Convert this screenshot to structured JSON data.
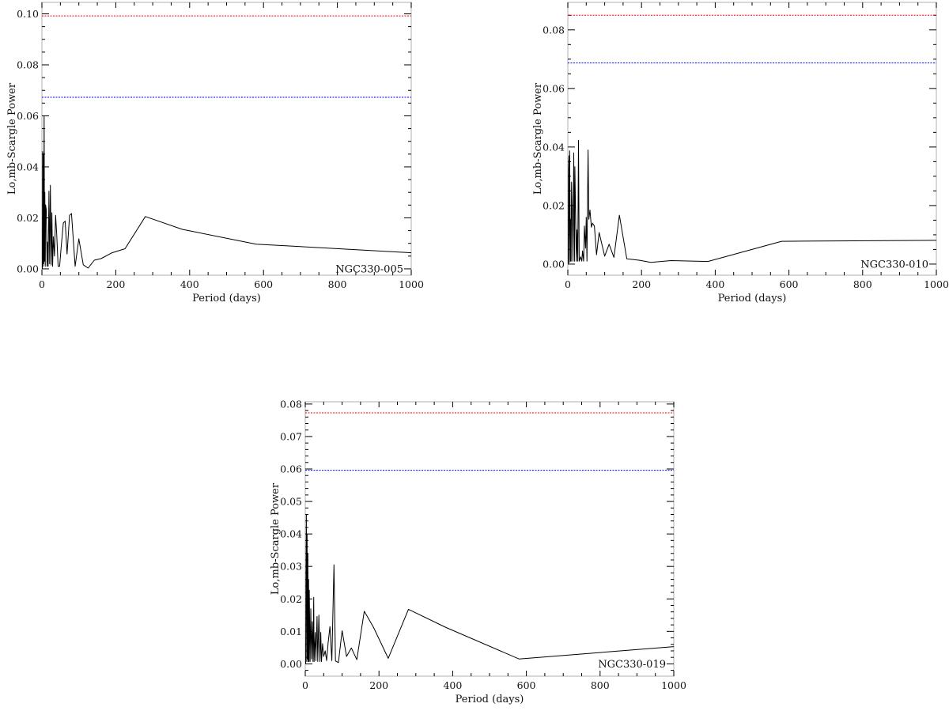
{
  "colors": {
    "significance_high": "#ff0000",
    "significance_low": "#0000ff",
    "series": "#000000"
  },
  "chart_data": [
    {
      "type": "line",
      "label": "NGC330-005",
      "xlabel": "Period (days)",
      "ylabel": "Lo,mb-Scargle Power",
      "xlim": [
        0,
        1000
      ],
      "ylim": [
        -0.0025,
        0.1045
      ],
      "xticks": [
        0,
        200,
        400,
        600,
        800,
        1000
      ],
      "xtick_labels": [
        "0",
        "200",
        "400",
        "600",
        "800",
        "1000"
      ],
      "xminor_step": 50,
      "yticks": [
        0,
        0.02,
        0.04,
        0.06,
        0.08,
        0.1
      ],
      "ytick_labels": [
        "0.00",
        "0.02",
        "0.04",
        "0.06",
        "0.08",
        "0.10"
      ],
      "yminor_step": 0.005,
      "grid": false,
      "thresholds": [
        {
          "y": 0.0992,
          "color": "#ff0000",
          "style": "dotted"
        },
        {
          "y": 0.0673,
          "color": "#0000ff",
          "style": "dotted"
        }
      ],
      "x": [
        1,
        2,
        3,
        4,
        5,
        6,
        7,
        8,
        9,
        10,
        12,
        14,
        15,
        17,
        19,
        21,
        23,
        25,
        27,
        29,
        31,
        34,
        37,
        40,
        44,
        48,
        52,
        58,
        63,
        68,
        75,
        80,
        90,
        100,
        112,
        125,
        142,
        160,
        190,
        225,
        280,
        380,
        580,
        1000
      ],
      "y": [
        0.0,
        0.046,
        0.001,
        0.045,
        0.002,
        0.06,
        0.003,
        0.03,
        0.001,
        0.025,
        0.023,
        0.001,
        0.0105,
        0.001,
        0.0305,
        0.002,
        0.0328,
        0.0015,
        0.022,
        0.001,
        0.0126,
        0.005,
        0.021,
        0.0137,
        0.001,
        0.001,
        0.0084,
        0.018,
        0.0187,
        0.0058,
        0.021,
        0.0217,
        0.001,
        0.0118,
        0.0016,
        0.0003,
        0.0034,
        0.004,
        0.0063,
        0.0079,
        0.0205,
        0.0155,
        0.0097,
        0.0063
      ]
    },
    {
      "type": "line",
      "label": "NGC330-010",
      "xlabel": "Period (days)",
      "ylabel": "Lo,mb-Scargle Power",
      "xlim": [
        0,
        1000
      ],
      "ylim": [
        -0.0038,
        0.0894
      ],
      "xticks": [
        0,
        200,
        400,
        600,
        800,
        1000
      ],
      "xtick_labels": [
        "0",
        "200",
        "400",
        "600",
        "800",
        "1000"
      ],
      "xminor_step": 50,
      "yticks": [
        0,
        0.02,
        0.04,
        0.06,
        0.08
      ],
      "ytick_labels": [
        "0.00",
        "0.02",
        "0.04",
        "0.06",
        "0.08"
      ],
      "yminor_step": 0.005,
      "grid": false,
      "thresholds": [
        {
          "y": 0.085,
          "color": "#ff0000",
          "style": "dotted"
        },
        {
          "y": 0.0687,
          "color": "#0000ff",
          "style": "dotted"
        }
      ],
      "x": [
        1,
        2,
        3,
        4,
        5,
        7,
        8,
        9,
        10,
        12,
        14,
        16,
        18,
        19,
        21,
        23,
        25,
        27,
        29,
        31,
        35,
        38,
        40,
        43,
        45,
        48,
        50,
        52,
        55,
        57,
        60,
        64,
        67,
        72,
        78,
        85,
        100,
        112,
        125,
        140,
        160,
        195,
        225,
        280,
        380,
        580,
        1000
      ],
      "y": [
        0.0,
        0.0325,
        0.037,
        0.0005,
        0.0387,
        0.001,
        0.0153,
        0.001,
        0.028,
        0.018,
        0.001,
        0.038,
        0.001,
        0.0333,
        0.018,
        0.001,
        0.0117,
        0.001,
        0.0423,
        0.001,
        0.0025,
        0.001,
        0.0045,
        0.001,
        0.013,
        0.0054,
        0.016,
        0.001,
        0.039,
        0.0153,
        0.0185,
        0.0126,
        0.014,
        0.013,
        0.0032,
        0.0108,
        0.0027,
        0.0068,
        0.0023,
        0.0167,
        0.0018,
        0.0013,
        0.0006,
        0.0012,
        0.0009,
        0.0078,
        0.0081
      ]
    },
    {
      "type": "line",
      "label": "NGC330-019",
      "xlabel": "Period (days)",
      "ylabel": "Lo,mb-Scargle Power",
      "xlim": [
        0,
        1000
      ],
      "ylim": [
        -0.0038,
        0.0807
      ],
      "xticks": [
        0,
        200,
        400,
        600,
        800,
        1000
      ],
      "xtick_labels": [
        "0",
        "200",
        "400",
        "600",
        "800",
        "1000"
      ],
      "xminor_step": 50,
      "yticks": [
        0,
        0.01,
        0.02,
        0.03,
        0.04,
        0.05,
        0.06,
        0.07,
        0.08
      ],
      "ytick_labels": [
        "0.00",
        "0.01",
        "0.02",
        "0.03",
        "0.04",
        "0.05",
        "0.06",
        "0.07",
        "0.08"
      ],
      "yminor_step": 0.002,
      "grid": false,
      "thresholds": [
        {
          "y": 0.0773,
          "color": "#ff0000",
          "style": "dotted"
        },
        {
          "y": 0.0596,
          "color": "#0000ff",
          "style": "dotted"
        }
      ],
      "x": [
        1,
        2,
        3,
        4,
        5,
        6,
        7,
        8,
        9,
        10,
        11,
        13,
        15,
        17,
        19,
        21,
        23,
        24,
        27,
        29,
        32,
        34,
        37,
        40,
        42,
        44,
        47,
        50,
        54,
        58,
        62,
        67,
        72,
        78,
        82,
        90,
        100,
        112,
        125,
        140,
        160,
        185,
        225,
        280,
        380,
        580,
        1000
      ],
      "y": [
        0.0,
        0.026,
        0.046,
        0.0007,
        0.04,
        0.0015,
        0.034,
        0.0007,
        0.026,
        0.0007,
        0.0227,
        0.0007,
        0.017,
        0.0015,
        0.013,
        0.0007,
        0.0205,
        0.0007,
        0.0097,
        0.001,
        0.0146,
        0.0007,
        0.015,
        0.0007,
        0.0097,
        0.0007,
        0.0062,
        0.0023,
        0.004,
        0.001,
        0.0064,
        0.0115,
        0.001,
        0.0305,
        0.0009,
        0.0004,
        0.0102,
        0.0023,
        0.0049,
        0.0013,
        0.0162,
        0.0113,
        0.0017,
        0.0168,
        0.0113,
        0.0015,
        0.0053
      ]
    }
  ]
}
